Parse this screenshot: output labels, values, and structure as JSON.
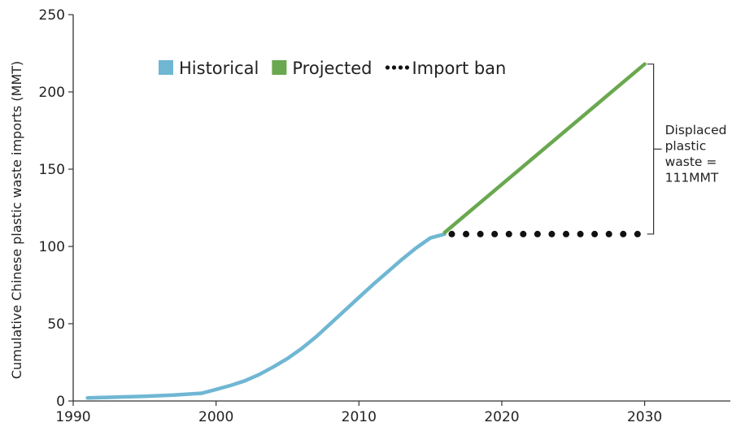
{
  "chart_data": {
    "type": "line",
    "title": "",
    "xlabel": "",
    "ylabel": "Cumulative Chinese plastic waste imports (MMT)",
    "xlim": [
      1990,
      2036
    ],
    "ylim": [
      0,
      250
    ],
    "xticks": [
      1990,
      2000,
      2010,
      2020,
      2030
    ],
    "yticks": [
      0,
      50,
      100,
      150,
      200,
      250
    ],
    "grid": false,
    "legend_position": "top",
    "series": [
      {
        "name": "Historical",
        "color": "#6fb7d3",
        "style": "solid",
        "x": [
          1991,
          1993,
          1995,
          1997,
          1999,
          2000,
          2001,
          2002,
          2003,
          2004,
          2005,
          2006,
          2007,
          2008,
          2009,
          2010,
          2011,
          2012,
          2013,
          2014,
          2015,
          2016
        ],
        "y": [
          2,
          2.5,
          3,
          3.8,
          5,
          7.5,
          10,
          13,
          17,
          22,
          27.5,
          34,
          41.5,
          50,
          58.5,
          67,
          75.5,
          83.5,
          91.5,
          99,
          105.5,
          108
        ]
      },
      {
        "name": "Projected",
        "color": "#6aa84f",
        "style": "solid",
        "x": [
          2016,
          2030
        ],
        "y": [
          109,
          218
        ]
      },
      {
        "name": "Import ban",
        "color": "#111111",
        "style": "dotted",
        "x": [
          2016.5,
          2017.5,
          2018.5,
          2019.5,
          2020.5,
          2021.5,
          2022.5,
          2023.5,
          2024.5,
          2025.5,
          2026.5,
          2027.5,
          2028.5,
          2029.5
        ],
        "y": [
          108,
          108,
          108,
          108,
          108,
          108,
          108,
          108,
          108,
          108,
          108,
          108,
          108,
          108
        ]
      }
    ],
    "annotation": {
      "lines": [
        "Displaced",
        "plastic",
        "waste =",
        "111MMT"
      ],
      "bracket_from": 108,
      "bracket_to": 218
    }
  }
}
